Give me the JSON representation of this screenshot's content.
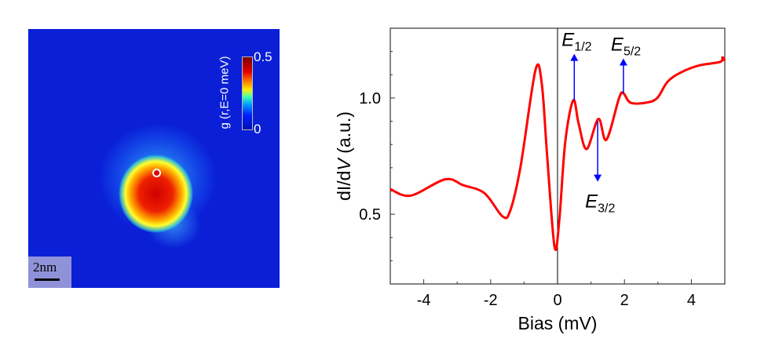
{
  "map_panel": {
    "colorbar_label": "g (r,E=0 meV)",
    "colorbar_max": "0.5",
    "colorbar_min": "0",
    "scale_bar": "2nm",
    "colormap": [
      "#0010b0",
      "#0020ff",
      "#00a0ff",
      "#40ffb0",
      "#ffee00",
      "#ff8a00",
      "#e00000",
      "#7a0000"
    ]
  },
  "chart_data": {
    "type": "line",
    "xlabel": "Bias (mV)",
    "ylabel_prefix": "dI/d",
    "ylabel_italic": "V",
    "ylabel_suffix": " (a.u.)",
    "xlim": [
      -5,
      5
    ],
    "ylim": [
      0.2,
      1.3
    ],
    "xticks": [
      -4,
      -2,
      0,
      2,
      4
    ],
    "xtick_labels": [
      "-4",
      "-2",
      "0",
      "2",
      "4"
    ],
    "yticks": [
      0.5,
      1.0
    ],
    "ytick_labels": [
      "0.5",
      "1.0"
    ],
    "grid": false,
    "zero_line": 0,
    "series": [
      {
        "color": "#ff0000",
        "x": [
          -5,
          -4.39,
          -3.36,
          -2.82,
          -2.18,
          -1.64,
          -1.41,
          -1.1,
          -0.66,
          -0.47,
          -0.31,
          -0.09,
          0.05,
          0.23,
          0.47,
          0.63,
          0.87,
          1.22,
          1.46,
          1.84,
          1.97,
          2.18,
          2.65,
          2.98,
          3.29,
          3.69,
          4.23,
          4.86,
          4.93,
          5
        ],
        "y": [
          0.608,
          0.58,
          0.65,
          0.625,
          0.59,
          0.49,
          0.517,
          0.71,
          1.12,
          1.06,
          0.75,
          0.36,
          0.47,
          0.81,
          0.99,
          0.89,
          0.78,
          0.91,
          0.82,
          1.0,
          1.02,
          0.98,
          0.98,
          1.0,
          1.07,
          1.11,
          1.14,
          1.155,
          1.175,
          1.16
        ]
      }
    ],
    "annotations": [
      {
        "main": "E",
        "sub": "1/2",
        "x": 0.5,
        "y_from": 0.99,
        "y_to": 1.19,
        "color": "#0000ff"
      },
      {
        "main": "E",
        "sub": "3/2",
        "x": 1.2,
        "y_from": 0.9,
        "y_to": 0.64,
        "color": "#0000ff"
      },
      {
        "main": "E",
        "sub": "5/2",
        "x": 1.97,
        "y_from": 1.02,
        "y_to": 1.17,
        "color": "#0000ff"
      }
    ]
  }
}
